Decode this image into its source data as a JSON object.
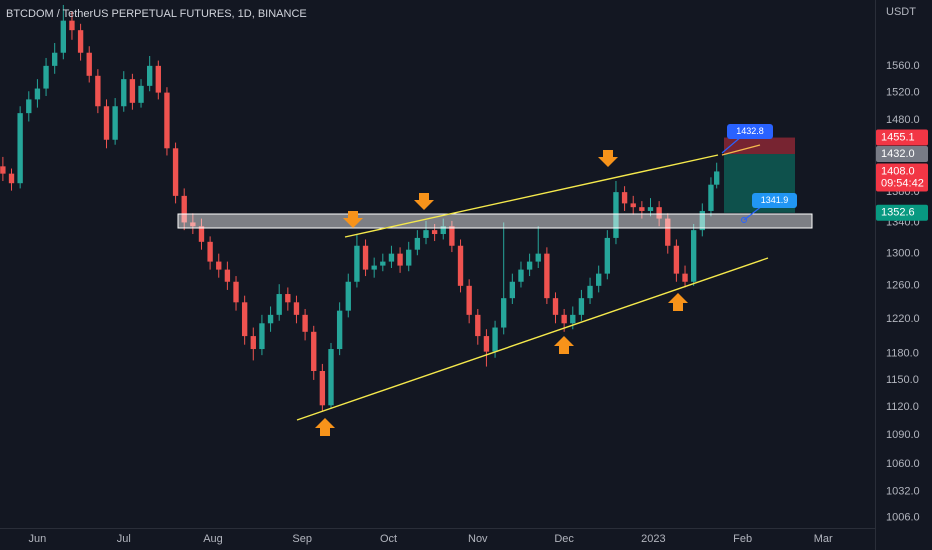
{
  "chart_data": {
    "type": "candlestick",
    "title": "BTCDOM / TetherUS PERPETUAL FUTURES, 1D, BINANCE",
    "currency": "USDT",
    "up_color": "#26a69a",
    "down_color": "#ef5350",
    "log_scale": true,
    "grid": false,
    "x": [
      -12,
      -9,
      -6,
      -3,
      0,
      3,
      6,
      9,
      12,
      15,
      18,
      21,
      24,
      27,
      30,
      33,
      36,
      39,
      42,
      45,
      48,
      51,
      54,
      57,
      60,
      63,
      66,
      69,
      72,
      75,
      78,
      81,
      84,
      87,
      90,
      93,
      96,
      99,
      102,
      105,
      108,
      111,
      114,
      117,
      120,
      123,
      126,
      129,
      132,
      135,
      138,
      141,
      144,
      147,
      150,
      153,
      156,
      159,
      162,
      165,
      168,
      171,
      174,
      177,
      180,
      183,
      186,
      189,
      192,
      195,
      198,
      201,
      204,
      207,
      210,
      213,
      216,
      219,
      222,
      225,
      228,
      231,
      234,
      236
    ],
    "open": [
      1415,
      1405,
      1392,
      1490,
      1510,
      1526,
      1560,
      1580,
      1630,
      1615,
      1580,
      1545,
      1500,
      1452,
      1500,
      1540,
      1505,
      1530,
      1560,
      1520,
      1440,
      1375,
      1340,
      1335,
      1315,
      1290,
      1280,
      1265,
      1240,
      1200,
      1185,
      1215,
      1225,
      1250,
      1240,
      1225,
      1205,
      1160,
      1122,
      1185,
      1230,
      1265,
      1310,
      1280,
      1285,
      1290,
      1300,
      1285,
      1305,
      1320,
      1330,
      1325,
      1335,
      1310,
      1260,
      1225,
      1200,
      1182,
      1210,
      1245,
      1265,
      1280,
      1290,
      1300,
      1245,
      1225,
      1215,
      1225,
      1245,
      1260,
      1275,
      1320,
      1380,
      1365,
      1360,
      1355,
      1360,
      1345,
      1310,
      1275,
      1265,
      1330,
      1355,
      1390
    ],
    "high": [
      1428,
      1412,
      1500,
      1522,
      1540,
      1572,
      1595,
      1655,
      1645,
      1625,
      1590,
      1555,
      1510,
      1512,
      1552,
      1548,
      1540,
      1575,
      1568,
      1528,
      1448,
      1385,
      1352,
      1345,
      1322,
      1300,
      1290,
      1272,
      1248,
      1210,
      1225,
      1235,
      1262,
      1258,
      1248,
      1232,
      1212,
      1168,
      1192,
      1240,
      1275,
      1325,
      1318,
      1295,
      1300,
      1310,
      1308,
      1315,
      1330,
      1342,
      1338,
      1345,
      1342,
      1318,
      1268,
      1232,
      1208,
      1218,
      1340,
      1275,
      1290,
      1300,
      1335,
      1308,
      1252,
      1232,
      1235,
      1255,
      1270,
      1285,
      1330,
      1395,
      1388,
      1375,
      1368,
      1372,
      1368,
      1352,
      1318,
      1285,
      1338,
      1365,
      1400,
      1420
    ],
    "low": [
      1395,
      1382,
      1385,
      1478,
      1498,
      1515,
      1548,
      1570,
      1600,
      1568,
      1535,
      1490,
      1440,
      1445,
      1492,
      1495,
      1498,
      1522,
      1510,
      1430,
      1365,
      1330,
      1325,
      1305,
      1280,
      1270,
      1255,
      1230,
      1190,
      1172,
      1178,
      1205,
      1218,
      1230,
      1215,
      1195,
      1150,
      1115,
      1118,
      1178,
      1222,
      1258,
      1272,
      1270,
      1278,
      1282,
      1276,
      1278,
      1298,
      1312,
      1316,
      1318,
      1302,
      1252,
      1215,
      1190,
      1165,
      1175,
      1202,
      1238,
      1258,
      1272,
      1282,
      1238,
      1215,
      1205,
      1208,
      1218,
      1238,
      1252,
      1268,
      1312,
      1355,
      1350,
      1345,
      1348,
      1335,
      1300,
      1265,
      1258,
      1260,
      1322,
      1348,
      1385
    ],
    "close": [
      1405,
      1392,
      1490,
      1510,
      1526,
      1560,
      1580,
      1630,
      1615,
      1580,
      1545,
      1500,
      1452,
      1500,
      1540,
      1505,
      1530,
      1560,
      1520,
      1440,
      1375,
      1340,
      1335,
      1315,
      1290,
      1280,
      1265,
      1240,
      1200,
      1185,
      1215,
      1225,
      1250,
      1240,
      1225,
      1205,
      1160,
      1122,
      1185,
      1230,
      1265,
      1310,
      1280,
      1285,
      1290,
      1300,
      1285,
      1305,
      1320,
      1330,
      1325,
      1335,
      1310,
      1260,
      1225,
      1200,
      1182,
      1210,
      1245,
      1265,
      1280,
      1290,
      1300,
      1245,
      1225,
      1215,
      1225,
      1245,
      1260,
      1275,
      1320,
      1380,
      1365,
      1360,
      1355,
      1360,
      1345,
      1310,
      1275,
      1265,
      1330,
      1355,
      1390,
      1408
    ],
    "xlim": [
      -13,
      291
    ],
    "xticks": [
      {
        "value": 0,
        "label": "Jun"
      },
      {
        "value": 30,
        "label": "Jul"
      },
      {
        "value": 61,
        "label": "Aug"
      },
      {
        "value": 92,
        "label": "Sep"
      },
      {
        "value": 122,
        "label": "Oct"
      },
      {
        "value": 153,
        "label": "Nov"
      },
      {
        "value": 183,
        "label": "Dec"
      },
      {
        "value": 214,
        "label": "2023"
      },
      {
        "value": 245,
        "label": "Feb"
      },
      {
        "value": 273,
        "label": "Mar"
      }
    ],
    "ylim": [
      996,
      1663
    ],
    "yticks": [
      {
        "value": 1006,
        "label": "1006.0"
      },
      {
        "value": 1032,
        "label": "1032.0"
      },
      {
        "value": 1060,
        "label": "1060.0"
      },
      {
        "value": 1090,
        "label": "1090.0"
      },
      {
        "value": 1120,
        "label": "1120.0"
      },
      {
        "value": 1150,
        "label": "1150.0"
      },
      {
        "value": 1180,
        "label": "1180.0"
      },
      {
        "value": 1220,
        "label": "1220.0"
      },
      {
        "value": 1260,
        "label": "1260.0"
      },
      {
        "value": 1300,
        "label": "1300.0"
      },
      {
        "value": 1340,
        "label": "1340.0"
      },
      {
        "value": 1380,
        "label": "1380.0"
      },
      {
        "value": 1480,
        "label": "1480.0"
      },
      {
        "value": 1520,
        "label": "1520.0"
      },
      {
        "value": 1560,
        "label": "1560.0"
      }
    ],
    "price_labels": [
      {
        "value": 1455.1,
        "label": "1455.1",
        "color": "#f23645"
      },
      {
        "value": 1432.0,
        "label": "1432.0",
        "color": "#787b86"
      },
      {
        "value": 1408.0,
        "label": "1408.0",
        "color": "#f23645",
        "countdown": "09:54:42"
      },
      {
        "value": 1352.6,
        "label": "1352.6",
        "color": "#089981"
      }
    ],
    "annotations": [
      {
        "value": 1432.8,
        "label": "1432.8"
      },
      {
        "value": 1341.9,
        "label": "1341.9"
      }
    ]
  }
}
